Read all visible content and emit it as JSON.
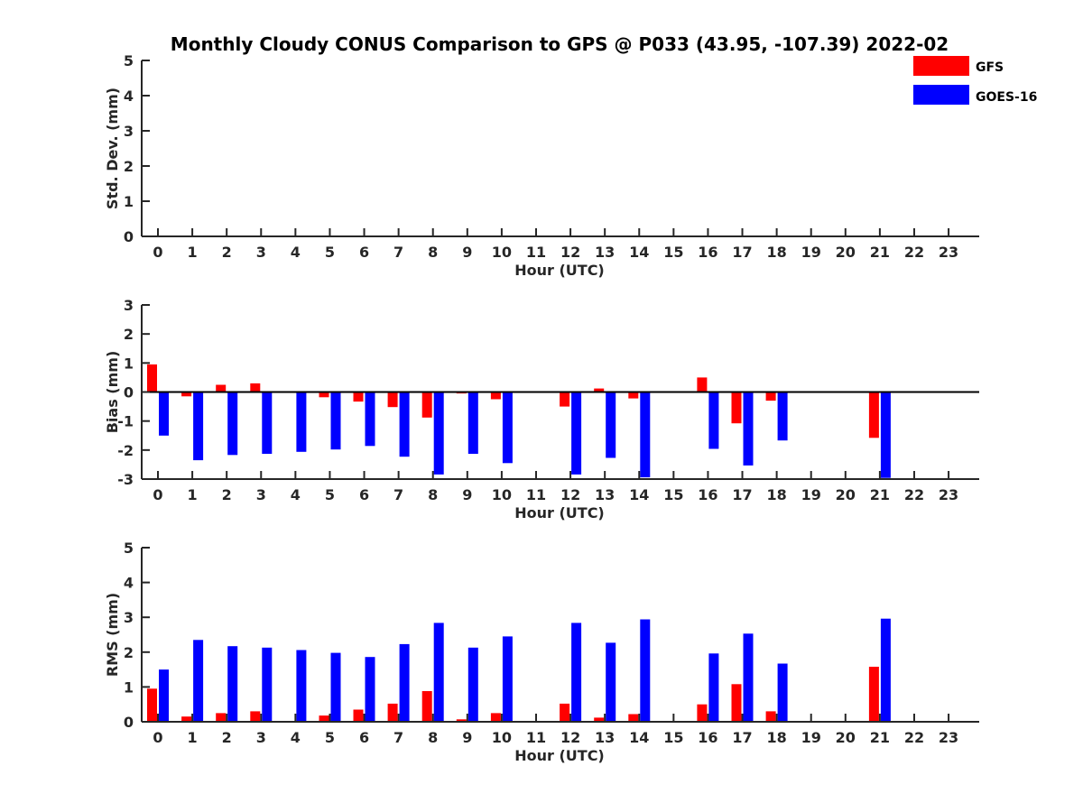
{
  "figure": {
    "title": "Monthly Cloudy CONUS Comparison to GPS @ P033 (43.95, -107.39) 2022-02"
  },
  "legend": {
    "placement": "top-right",
    "items": [
      {
        "label": "GFS",
        "color": "#ff0000"
      },
      {
        "label": "GOES-16",
        "color": "#0000ff"
      }
    ]
  },
  "chart_data": [
    {
      "type": "bar",
      "ylabel": "Std. Dev. (mm)",
      "xlabel": "Hour (UTC)",
      "ylim": [
        0,
        5
      ],
      "yticks": [
        0,
        1,
        2,
        3,
        4,
        5
      ],
      "categories": [
        0,
        1,
        2,
        3,
        4,
        5,
        6,
        7,
        8,
        9,
        10,
        11,
        12,
        13,
        14,
        15,
        16,
        17,
        18,
        19,
        20,
        21,
        22,
        23
      ],
      "series": [
        {
          "name": "GFS",
          "color": "#ff0000",
          "values": [
            null,
            null,
            null,
            null,
            null,
            null,
            null,
            null,
            null,
            null,
            null,
            null,
            null,
            null,
            null,
            null,
            null,
            null,
            null,
            null,
            null,
            null,
            null,
            null
          ]
        },
        {
          "name": "GOES-16",
          "color": "#0000ff",
          "values": [
            null,
            null,
            null,
            null,
            null,
            null,
            null,
            null,
            null,
            null,
            null,
            null,
            null,
            null,
            null,
            null,
            null,
            null,
            null,
            null,
            null,
            null,
            null,
            null
          ]
        }
      ]
    },
    {
      "type": "bar",
      "ylabel": "Bias (mm)",
      "xlabel": "Hour (UTC)",
      "ylim": [
        -3,
        3
      ],
      "yticks": [
        -3,
        -2,
        -1,
        0,
        1,
        2,
        3
      ],
      "zero_line": true,
      "categories": [
        0,
        1,
        2,
        3,
        4,
        5,
        6,
        7,
        8,
        9,
        10,
        11,
        12,
        13,
        14,
        15,
        16,
        17,
        18,
        19,
        20,
        21,
        22,
        23
      ],
      "series": [
        {
          "name": "GFS",
          "color": "#ff0000",
          "values": [
            0.95,
            -0.15,
            0.25,
            0.3,
            null,
            -0.18,
            -0.33,
            -0.52,
            -0.88,
            -0.05,
            -0.25,
            null,
            -0.5,
            0.12,
            -0.22,
            null,
            0.5,
            -1.08,
            -0.3,
            null,
            null,
            -1.58,
            null,
            null
          ]
        },
        {
          "name": "GOES-16",
          "color": "#0000ff",
          "values": [
            -1.5,
            -2.35,
            -2.17,
            -2.13,
            -2.06,
            -1.98,
            -1.86,
            -2.23,
            -2.84,
            -2.13,
            -2.45,
            null,
            -2.84,
            -2.27,
            -2.94,
            null,
            -1.96,
            -2.53,
            -1.67,
            null,
            null,
            -2.96,
            null,
            null
          ]
        }
      ]
    },
    {
      "type": "bar",
      "ylabel": "RMS (mm)",
      "xlabel": "Hour (UTC)",
      "ylim": [
        0,
        5
      ],
      "yticks": [
        0,
        1,
        2,
        3,
        4,
        5
      ],
      "categories": [
        0,
        1,
        2,
        3,
        4,
        5,
        6,
        7,
        8,
        9,
        10,
        11,
        12,
        13,
        14,
        15,
        16,
        17,
        18,
        19,
        20,
        21,
        22,
        23
      ],
      "series": [
        {
          "name": "GFS",
          "color": "#ff0000",
          "values": [
            0.95,
            0.15,
            0.25,
            0.3,
            null,
            0.18,
            0.35,
            0.52,
            0.88,
            0.07,
            0.25,
            null,
            0.52,
            0.12,
            0.22,
            null,
            0.5,
            1.08,
            0.3,
            null,
            null,
            1.58,
            null,
            null
          ]
        },
        {
          "name": "GOES-16",
          "color": "#0000ff",
          "values": [
            1.5,
            2.35,
            2.17,
            2.13,
            2.06,
            1.98,
            1.86,
            2.23,
            2.84,
            2.13,
            2.45,
            null,
            2.84,
            2.27,
            2.94,
            null,
            1.96,
            2.53,
            1.67,
            null,
            null,
            2.96,
            null,
            null
          ]
        }
      ]
    }
  ]
}
